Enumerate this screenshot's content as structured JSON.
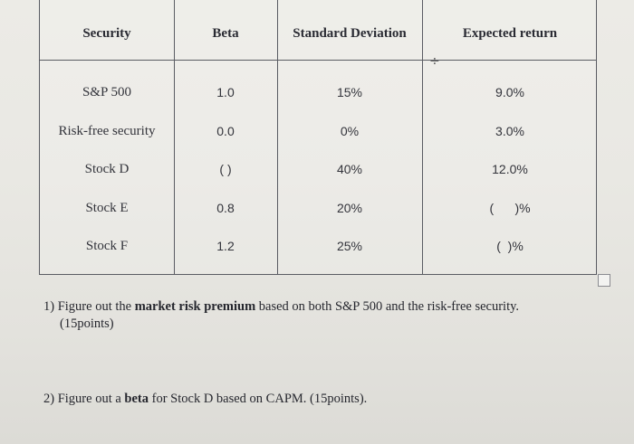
{
  "table": {
    "headers": [
      "Security",
      "Beta",
      "Standard Deviation",
      "Expected return"
    ],
    "rows": [
      [
        "S&P 500",
        "1.0",
        "15%",
        "9.0%"
      ],
      [
        "Risk-free security",
        "0.0",
        "0%",
        "3.0%"
      ],
      [
        "Stock D",
        "( )",
        "40%",
        "12.0%"
      ],
      [
        "Stock E",
        "0.8",
        "20%",
        "(      )%"
      ],
      [
        "Stock F",
        "1.2",
        "25%",
        "(  )%"
      ]
    ]
  },
  "questions": [
    {
      "number": "1)",
      "text_before": "Figure out the ",
      "bold": "market risk premium",
      "text_after": " based on both S&P 500 and the risk-free security.",
      "points": "(15points)"
    },
    {
      "number": "2)",
      "text_before": "Figure out a ",
      "bold": "beta",
      "text_after": " for Stock D based on CAPM. (15points)."
    }
  ],
  "icons": {
    "cursor": "text-cursor-icon",
    "checkbox": "checkbox-icon"
  }
}
